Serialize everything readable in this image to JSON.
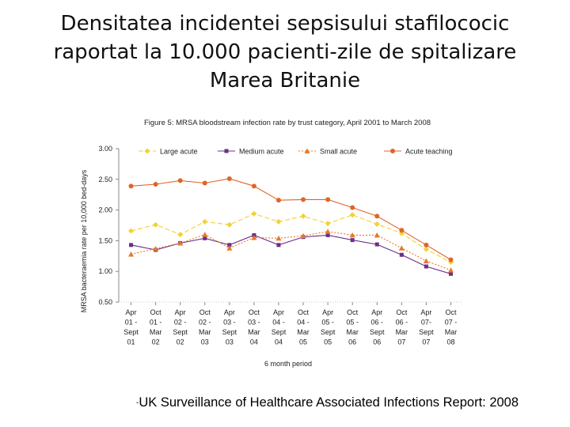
{
  "slide": {
    "title_lines": [
      "Densitatea incidentei sepsisului stafilococic",
      "raportat la 10.000 pacienti-zile de spitalizare",
      "Marea Britanie"
    ],
    "source_dash": "-",
    "source": "UK Surveillance of Healthcare Associated Infections Report: 2008"
  },
  "colors": {
    "large_acute": "#f2d230",
    "medium_acute": "#6a2f86",
    "small_acute": "#e8782a",
    "acute_teaching": "#e0642a",
    "axis": "#888888",
    "text": "#222222"
  },
  "chart_data": {
    "type": "line",
    "title": "Figure 5: MRSA bloodstream infection rate by trust category, April 2001 to March 2008",
    "xlabel": "6 month period",
    "ylabel": "MRSA bacteraemia rate per 10,000 bed-days",
    "ylim": [
      0.5,
      3.0
    ],
    "yticks": [
      "0.50",
      "1.00",
      "1.50",
      "2.00",
      "2.50",
      "3.00"
    ],
    "categories": [
      [
        "Apr",
        "01 -",
        "Sept",
        "01"
      ],
      [
        "Oct",
        "01 -",
        "Mar",
        "02"
      ],
      [
        "Apr",
        "02 -",
        "Sept",
        "02"
      ],
      [
        "Oct",
        "02 -",
        "Mar",
        "03"
      ],
      [
        "Apr",
        "03 -",
        "Sept",
        "03"
      ],
      [
        "Oct",
        "03 -",
        "Mar",
        "04"
      ],
      [
        "Apr",
        "04 -",
        "Sept",
        "04"
      ],
      [
        "Oct",
        "04 -",
        "Mar",
        "05"
      ],
      [
        "Apr",
        "05 -",
        "Sept",
        "05"
      ],
      [
        "Oct",
        "05 -",
        "Mar",
        "06"
      ],
      [
        "Apr",
        "06 -",
        "Sept",
        "06"
      ],
      [
        "Oct",
        "06 -",
        "Mar",
        "07"
      ],
      [
        "Apr",
        "07-",
        "Sept",
        "07"
      ],
      [
        "Oct",
        "07 -",
        "Mar",
        "08"
      ]
    ],
    "legend_position": "top",
    "series": [
      {
        "name": "Large acute",
        "key": "large_acute",
        "marker": "diamond",
        "dash": "6,3",
        "values": [
          1.66,
          1.76,
          1.6,
          1.81,
          1.76,
          1.94,
          1.81,
          1.9,
          1.78,
          1.92,
          1.77,
          1.62,
          1.36,
          1.15
        ]
      },
      {
        "name": "Medium acute",
        "key": "medium_acute",
        "marker": "square",
        "dash": "",
        "values": [
          1.43,
          1.35,
          1.46,
          1.54,
          1.43,
          1.59,
          1.43,
          1.56,
          1.59,
          1.51,
          1.44,
          1.27,
          1.08,
          0.96
        ]
      },
      {
        "name": "Small acute",
        "key": "small_acute",
        "marker": "triangle",
        "dash": "2,2",
        "values": [
          1.28,
          1.37,
          1.46,
          1.6,
          1.38,
          1.55,
          1.54,
          1.58,
          1.65,
          1.59,
          1.59,
          1.38,
          1.17,
          1.02
        ]
      },
      {
        "name": "Acute teaching",
        "key": "acute_teaching",
        "marker": "circle",
        "dash": "",
        "values": [
          2.39,
          2.42,
          2.48,
          2.44,
          2.51,
          2.39,
          2.16,
          2.17,
          2.17,
          2.04,
          1.9,
          1.67,
          1.43,
          1.19
        ]
      }
    ]
  }
}
